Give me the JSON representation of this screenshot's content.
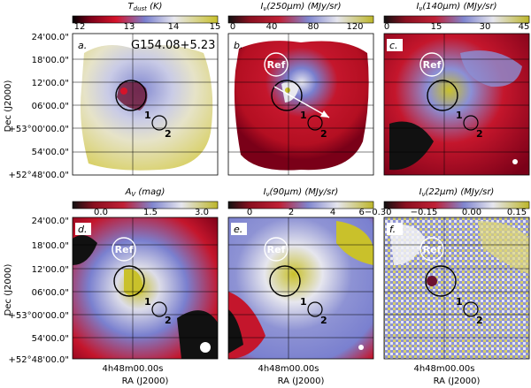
{
  "figure": {
    "field_name": "G154.08+5.23",
    "dec_axis_label": "Dec (J2000)",
    "ra_axis_label": "RA (J2000)",
    "ra_tick_label": "4h48m00.00s",
    "dec_ticks_top": [
      "24'00.0\"",
      "18'00.0\"",
      "12'00.0\"",
      "06'00.0\"",
      "+53°00'00.0\"",
      "54'00.0\"",
      "+52°48'00.0\""
    ],
    "dec_ticks_bottom": [
      "24'00.0\"",
      "18'00.0\"",
      "12'00.0\"",
      "06'00.0\"",
      "+53°00'00.0\"",
      "54'00.0\"",
      "+52°48'00.0\""
    ],
    "reference_label": "Ref",
    "source_labels": [
      "1",
      "2"
    ]
  },
  "panels": [
    {
      "id": "a",
      "letter": "a.",
      "title": "T_dust (K)",
      "colorbar_ticks": [
        "12",
        "13",
        "14",
        "15"
      ],
      "colormap": "yellow"
    },
    {
      "id": "b",
      "letter": "b.",
      "title": "I_ν(250μm) (MJy/sr)",
      "colorbar_ticks": [
        "0",
        "40",
        "80",
        "120"
      ],
      "colormap": "full"
    },
    {
      "id": "c",
      "letter": "c.",
      "title": "I_ν(140μm) (MJy/sr)",
      "colorbar_ticks": [
        "0",
        "15",
        "30",
        "45"
      ],
      "colormap": "full"
    },
    {
      "id": "d",
      "letter": "d.",
      "title": "A_V (mag)",
      "colorbar_ticks": [
        "0.0",
        "1.5",
        "3.0"
      ],
      "colormap": "full"
    },
    {
      "id": "e",
      "letter": "e.",
      "title": "I_ν(90μm) (MJy/sr)",
      "colorbar_ticks": [
        "0",
        "2",
        "4",
        "6−0.30"
      ],
      "colormap": "full"
    },
    {
      "id": "f",
      "letter": "f.",
      "title": "I_ν(22μm) (MJy/sr)",
      "colorbar_ticks": [
        "−0.15",
        "0.00",
        "0.15"
      ],
      "colormap": "full"
    }
  ],
  "colors": {
    "black": "#000000",
    "dark_red": "#7a0018",
    "red": "#d6132a",
    "light_blue": "#7a80cf",
    "pale": "#e8e8ef",
    "yellow": "#c9c12b",
    "frame": "#000000"
  }
}
